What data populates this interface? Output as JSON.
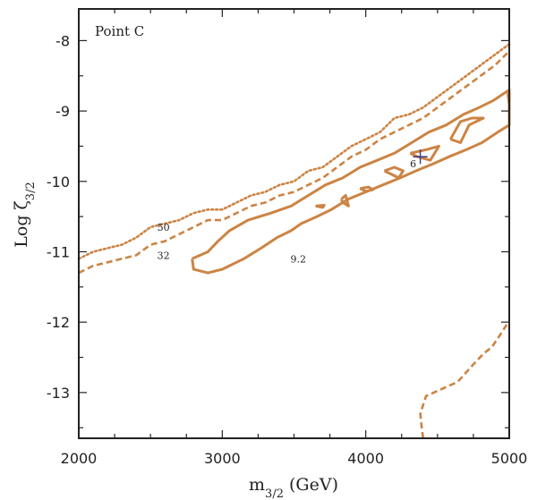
{
  "chart_data": {
    "type": "line",
    "title": "",
    "panel_label": "Point C",
    "xlabel": {
      "main": "m",
      "sub": "3/2",
      "rest": " (GeV)"
    },
    "ylabel": {
      "main": "Log ζ",
      "sub": "3/2"
    },
    "xlim": [
      2000,
      5000
    ],
    "ylim": [
      -13.65,
      -7.55
    ],
    "xticks": [
      2000,
      3000,
      4000,
      5000
    ],
    "yticks": [
      -8,
      -9,
      -10,
      -11,
      -12,
      -13
    ],
    "grid": false,
    "legend": "none",
    "colors": {
      "contour": "#cc8444",
      "marker": "#3a3a8c",
      "axis": "#222222"
    },
    "series": [
      {
        "label": "50",
        "style": "dotted",
        "points": [
          [
            2000,
            -11.1
          ],
          [
            2100,
            -11.0
          ],
          [
            2200,
            -10.95
          ],
          [
            2300,
            -10.9
          ],
          [
            2400,
            -10.8
          ],
          [
            2500,
            -10.65
          ],
          [
            2600,
            -10.6
          ],
          [
            2700,
            -10.55
          ],
          [
            2800,
            -10.45
          ],
          [
            2900,
            -10.4
          ],
          [
            3000,
            -10.4
          ],
          [
            3100,
            -10.3
          ],
          [
            3200,
            -10.2
          ],
          [
            3300,
            -10.15
          ],
          [
            3400,
            -10.05
          ],
          [
            3500,
            -10.0
          ],
          [
            3600,
            -9.85
          ],
          [
            3700,
            -9.8
          ],
          [
            3800,
            -9.65
          ],
          [
            3900,
            -9.5
          ],
          [
            4000,
            -9.4
          ],
          [
            4100,
            -9.3
          ],
          [
            4200,
            -9.1
          ],
          [
            4300,
            -9.05
          ],
          [
            4400,
            -8.95
          ],
          [
            4500,
            -8.8
          ],
          [
            4600,
            -8.65
          ],
          [
            4700,
            -8.5
          ],
          [
            4800,
            -8.35
          ],
          [
            4900,
            -8.2
          ],
          [
            5000,
            -8.05
          ]
        ]
      },
      {
        "label": "32",
        "style": "dashed",
        "points": [
          [
            2000,
            -11.3
          ],
          [
            2100,
            -11.2
          ],
          [
            2200,
            -11.15
          ],
          [
            2300,
            -11.1
          ],
          [
            2400,
            -11.05
          ],
          [
            2500,
            -10.9
          ],
          [
            2600,
            -10.85
          ],
          [
            2700,
            -10.75
          ],
          [
            2800,
            -10.65
          ],
          [
            2900,
            -10.55
          ],
          [
            3000,
            -10.55
          ],
          [
            3100,
            -10.45
          ],
          [
            3200,
            -10.35
          ],
          [
            3300,
            -10.3
          ],
          [
            3400,
            -10.2
          ],
          [
            3500,
            -10.15
          ],
          [
            3600,
            -10.05
          ],
          [
            3700,
            -9.95
          ],
          [
            3800,
            -9.8
          ],
          [
            3900,
            -9.65
          ],
          [
            4000,
            -9.55
          ],
          [
            4100,
            -9.4
          ],
          [
            4200,
            -9.3
          ],
          [
            4300,
            -9.2
          ],
          [
            4400,
            -9.1
          ],
          [
            4500,
            -8.95
          ],
          [
            4600,
            -8.8
          ],
          [
            4700,
            -8.65
          ],
          [
            4800,
            -8.5
          ],
          [
            4900,
            -8.35
          ],
          [
            5000,
            -8.15
          ]
        ]
      },
      {
        "label": "9.2",
        "style": "solid",
        "points": [
          [
            2790,
            -11.1
          ],
          [
            2900,
            -11.0
          ],
          [
            2970,
            -10.85
          ],
          [
            3050,
            -10.7
          ],
          [
            3180,
            -10.55
          ],
          [
            3340,
            -10.45
          ],
          [
            3480,
            -10.35
          ],
          [
            3600,
            -10.2
          ],
          [
            3720,
            -10.05
          ],
          [
            3840,
            -9.95
          ],
          [
            3960,
            -9.8
          ],
          [
            4080,
            -9.7
          ],
          [
            4200,
            -9.6
          ],
          [
            4320,
            -9.45
          ],
          [
            4440,
            -9.3
          ],
          [
            4560,
            -9.2
          ],
          [
            4680,
            -9.05
          ],
          [
            4790,
            -8.95
          ],
          [
            4890,
            -8.85
          ],
          [
            5000,
            -8.7
          ],
          [
            5000,
            -9.2
          ],
          [
            4920,
            -9.3
          ],
          [
            4810,
            -9.45
          ],
          [
            4700,
            -9.55
          ],
          [
            4580,
            -9.65
          ],
          [
            4470,
            -9.75
          ],
          [
            4350,
            -9.85
          ],
          [
            4240,
            -9.95
          ],
          [
            4120,
            -10.05
          ],
          [
            4000,
            -10.15
          ],
          [
            3880,
            -10.25
          ],
          [
            3760,
            -10.4
          ],
          [
            3660,
            -10.5
          ],
          [
            3550,
            -10.6
          ],
          [
            3480,
            -10.7
          ],
          [
            3380,
            -10.8
          ],
          [
            3270,
            -10.95
          ],
          [
            3150,
            -11.1
          ],
          [
            3000,
            -11.25
          ],
          [
            2900,
            -11.3
          ],
          [
            2800,
            -11.25
          ],
          [
            2790,
            -11.1
          ]
        ]
      },
      {
        "label": "",
        "style": "solid",
        "points": [
          [
            4590,
            -9.4
          ],
          [
            4660,
            -9.15
          ],
          [
            4740,
            -9.1
          ],
          [
            4820,
            -9.1
          ],
          [
            4720,
            -9.2
          ],
          [
            4660,
            -9.45
          ],
          [
            4590,
            -9.4
          ]
        ]
      },
      {
        "label": "",
        "style": "solid",
        "points": [
          [
            4310,
            -9.6
          ],
          [
            4420,
            -9.55
          ],
          [
            4510,
            -9.5
          ],
          [
            4450,
            -9.7
          ],
          [
            4360,
            -9.65
          ],
          [
            4310,
            -9.6
          ]
        ]
      },
      {
        "label": "",
        "style": "solid",
        "points": [
          [
            4130,
            -9.85
          ],
          [
            4200,
            -9.8
          ],
          [
            4260,
            -9.85
          ],
          [
            4230,
            -9.95
          ],
          [
            4130,
            -9.85
          ]
        ]
      },
      {
        "label": "",
        "style": "solid",
        "points": [
          [
            3960,
            -10.1
          ],
          [
            4020,
            -10.08
          ],
          [
            4050,
            -10.12
          ],
          [
            4000,
            -10.14
          ],
          [
            3960,
            -10.1
          ]
        ]
      },
      {
        "label": "",
        "style": "solid",
        "points": [
          [
            3830,
            -10.25
          ],
          [
            3860,
            -10.2
          ],
          [
            3880,
            -10.35
          ],
          [
            3840,
            -10.3
          ],
          [
            3830,
            -10.25
          ]
        ]
      },
      {
        "label": "",
        "style": "solid",
        "points": [
          [
            3650,
            -10.35
          ],
          [
            3710,
            -10.34
          ],
          [
            3700,
            -10.37
          ],
          [
            3650,
            -10.35
          ]
        ]
      },
      {
        "label": "",
        "style": "solid",
        "points": [
          [
            4990,
            -8.75
          ],
          [
            5000,
            -8.7
          ],
          [
            5000,
            -8.9
          ],
          [
            4990,
            -8.75
          ]
        ]
      },
      {
        "label": "",
        "style": "dashed",
        "points": [
          [
            4400,
            -13.65
          ],
          [
            4390,
            -13.5
          ],
          [
            4380,
            -13.3
          ],
          [
            4420,
            -13.05
          ],
          [
            4530,
            -12.95
          ],
          [
            4640,
            -12.85
          ],
          [
            4750,
            -12.6
          ],
          [
            4820,
            -12.45
          ],
          [
            4880,
            -12.35
          ],
          [
            4930,
            -12.2
          ],
          [
            5000,
            -11.98
          ]
        ]
      }
    ],
    "annotations": [
      {
        "text": "50",
        "x": 2590,
        "y": -10.7
      },
      {
        "text": "32",
        "x": 2590,
        "y": -11.1
      },
      {
        "text": "9.2",
        "x": 3530,
        "y": -11.15
      },
      {
        "text": "6",
        "x": 4330,
        "y": -9.8
      }
    ],
    "marker": {
      "x": 4380,
      "y": -9.65,
      "symbol": "plus"
    }
  }
}
